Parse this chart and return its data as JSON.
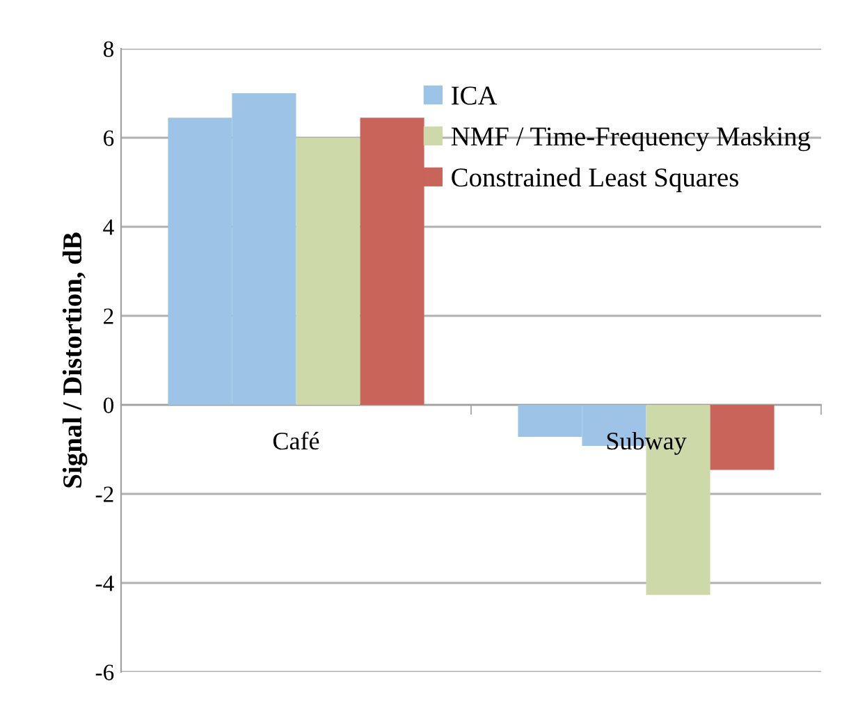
{
  "chart_data": {
    "type": "bar",
    "ylabel": "Signal / Distortion, dB",
    "categories": [
      "Café",
      "Subway"
    ],
    "series": [
      {
        "name": "ICA",
        "color": "#9dc3e6",
        "values": [
          6.45,
          -0.72
        ]
      },
      {
        "color": "#9dc3e6",
        "values": [
          7.0,
          -0.92
        ]
      },
      {
        "name": "NMF / Time-Frequency Masking",
        "color": "#cdd9a8",
        "values": [
          6.0,
          -4.27
        ]
      },
      {
        "name": "Constrained Least Squares",
        "color": "#c9645a",
        "values": [
          6.45,
          -1.46
        ]
      }
    ],
    "ylim": [
      -6,
      8
    ],
    "yticks": [
      -6,
      -4,
      -2,
      0,
      2,
      4,
      6,
      8
    ],
    "grid": "y",
    "legend": "top right"
  }
}
